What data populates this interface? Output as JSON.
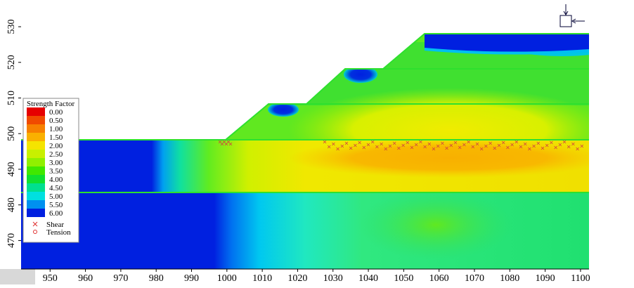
{
  "chart_data": {
    "type": "contour",
    "xlim": [
      941.8,
      1102.4
    ],
    "xticks": [
      950,
      960,
      970,
      980,
      990,
      1000,
      1010,
      1020,
      1030,
      1040,
      1050,
      1060,
      1070,
      1080,
      1090,
      1100
    ],
    "ylim": [
      462,
      537.5
    ],
    "yticks": [
      470,
      480,
      490,
      500,
      510,
      520,
      530
    ],
    "legend": {
      "title": "Strength Factor",
      "levels": [
        {
          "value": 0,
          "label": "0.00"
        },
        {
          "value": 0.5,
          "label": "0.50"
        },
        {
          "value": 1,
          "label": "1.00"
        },
        {
          "value": 1.5,
          "label": "1.50"
        },
        {
          "value": 2,
          "label": "2.00"
        },
        {
          "value": 2.5,
          "label": "2.50"
        },
        {
          "value": 3,
          "label": "3.00"
        },
        {
          "value": 3.5,
          "label": "3.50"
        },
        {
          "value": 4,
          "label": "4.00"
        },
        {
          "value": 4.5,
          "label": "4.50"
        },
        {
          "value": 5,
          "label": "5.00"
        },
        {
          "value": 5.5,
          "label": "5.50"
        },
        {
          "value": 6,
          "label": "6.00"
        }
      ],
      "colors": [
        "#e60000",
        "#f04a00",
        "#f78000",
        "#fab000",
        "#f5e400",
        "#c8f000",
        "#90f000",
        "#40e800",
        "#10e030",
        "#00e090",
        "#00e0e0",
        "#0090f0",
        "#0020e0"
      ],
      "markers": [
        {
          "name": "Shear",
          "color": "#e03030"
        },
        {
          "name": "Tension",
          "color": "#e03030"
        }
      ]
    }
  }
}
